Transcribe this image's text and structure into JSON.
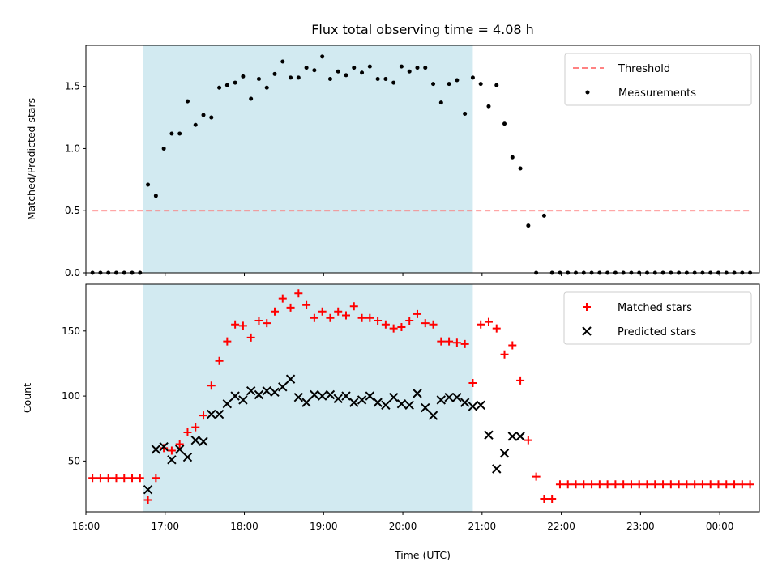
{
  "chart_data": [
    {
      "type": "scatter",
      "title": "Flux total observing time = 4.08 h",
      "xlabel": "",
      "ylabel": "Matched/Predicted stars",
      "ylim": [
        0,
        1.83
      ],
      "xlim": [
        "16:00",
        "00:30"
      ],
      "grid": false,
      "legend_position": "top-right",
      "y_ticks": [
        "0.0",
        "0.5",
        "1.0",
        "1.5"
      ],
      "shaded_span": {
        "start": "16:43",
        "end": "20:53",
        "color": "#add8e6"
      },
      "series": [
        {
          "name": "Threshold",
          "type": "line",
          "style": "dashed",
          "color": "#ff7070",
          "x": [
            "16:05",
            "00:24"
          ],
          "y": [
            0.5,
            0.5
          ]
        },
        {
          "name": "Measurements",
          "type": "scatter",
          "color": "#000000",
          "x": [
            "16:05",
            "16:11",
            "16:17",
            "16:23",
            "16:29",
            "16:35",
            "16:41",
            "16:47",
            "16:53",
            "16:59",
            "17:05",
            "17:11",
            "17:17",
            "17:23",
            "17:29",
            "17:35",
            "17:41",
            "17:47",
            "17:53",
            "17:59",
            "18:05",
            "18:11",
            "18:17",
            "18:23",
            "18:29",
            "18:35",
            "18:41",
            "18:47",
            "18:53",
            "18:59",
            "19:05",
            "19:11",
            "19:17",
            "19:23",
            "19:29",
            "19:35",
            "19:41",
            "19:47",
            "19:53",
            "19:59",
            "20:05",
            "20:11",
            "20:17",
            "20:23",
            "20:29",
            "20:35",
            "20:41",
            "20:47",
            "20:53",
            "20:59",
            "21:05",
            "21:11",
            "21:17",
            "21:23",
            "21:29",
            "21:35",
            "21:41",
            "21:47",
            "21:53",
            "21:59",
            "22:05",
            "22:11",
            "22:17",
            "22:23",
            "22:29",
            "22:35",
            "22:41",
            "22:47",
            "22:53",
            "22:59",
            "23:05",
            "23:11",
            "23:17",
            "23:23",
            "23:29",
            "23:35",
            "23:41",
            "23:47",
            "23:53",
            "23:59",
            "00:05",
            "00:11",
            "00:17",
            "00:23"
          ],
          "y": [
            0,
            0,
            0,
            0,
            0,
            0,
            0,
            0.71,
            0.62,
            1.0,
            1.12,
            1.12,
            1.38,
            1.19,
            1.27,
            1.25,
            1.49,
            1.51,
            1.53,
            1.58,
            1.4,
            1.56,
            1.49,
            1.6,
            1.7,
            1.57,
            1.57,
            1.65,
            1.63,
            1.74,
            1.56,
            1.62,
            1.59,
            1.65,
            1.61,
            1.66,
            1.56,
            1.56,
            1.53,
            1.66,
            1.62,
            1.65,
            1.65,
            1.52,
            1.37,
            1.52,
            1.55,
            1.28,
            1.57,
            1.52,
            1.34,
            1.51,
            1.2,
            0.93,
            0.84,
            0.38,
            0,
            0.46,
            0,
            0,
            0,
            0,
            0,
            0,
            0,
            0,
            0,
            0,
            0,
            0,
            0,
            0,
            0,
            0,
            0,
            0,
            0,
            0,
            0,
            0,
            0,
            0,
            0,
            0
          ]
        }
      ]
    },
    {
      "type": "scatter",
      "title": "",
      "xlabel": "Time (UTC)",
      "ylabel": "Count",
      "ylim": [
        11,
        186
      ],
      "xlim": [
        "16:00",
        "00:30"
      ],
      "grid": false,
      "legend_position": "top-right",
      "y_ticks": [
        "50",
        "100",
        "150"
      ],
      "x_ticks": [
        "16:00",
        "17:00",
        "18:00",
        "19:00",
        "20:00",
        "21:00",
        "22:00",
        "23:00",
        "00:00"
      ],
      "shaded_span": {
        "start": "16:43",
        "end": "20:53",
        "color": "#add8e6"
      },
      "series": [
        {
          "name": "Matched stars",
          "type": "scatter",
          "marker": "+",
          "color": "#ff0000",
          "x": [
            "16:05",
            "16:11",
            "16:17",
            "16:23",
            "16:29",
            "16:35",
            "16:41",
            "16:47",
            "16:53",
            "16:59",
            "17:05",
            "17:11",
            "17:17",
            "17:23",
            "17:29",
            "17:35",
            "17:41",
            "17:47",
            "17:53",
            "17:59",
            "18:05",
            "18:11",
            "18:17",
            "18:23",
            "18:29",
            "18:35",
            "18:41",
            "18:47",
            "18:53",
            "18:59",
            "19:05",
            "19:11",
            "19:17",
            "19:23",
            "19:29",
            "19:35",
            "19:41",
            "19:47",
            "19:53",
            "19:59",
            "20:05",
            "20:11",
            "20:17",
            "20:23",
            "20:29",
            "20:35",
            "20:41",
            "20:47",
            "20:53",
            "20:59",
            "21:05",
            "21:11",
            "21:17",
            "21:23",
            "21:29",
            "21:35",
            "21:41",
            "21:47",
            "21:53",
            "21:59",
            "22:05",
            "22:11",
            "22:17",
            "22:23",
            "22:29",
            "22:35",
            "22:41",
            "22:47",
            "22:53",
            "22:59",
            "23:05",
            "23:11",
            "23:17",
            "23:23",
            "23:29",
            "23:35",
            "23:41",
            "23:47",
            "23:53",
            "23:59",
            "00:05",
            "00:11",
            "00:17",
            "00:23"
          ],
          "y": [
            37,
            37,
            37,
            37,
            37,
            37,
            37,
            20,
            37,
            60,
            58,
            63,
            72,
            76,
            85,
            108,
            127,
            142,
            155,
            154,
            145,
            158,
            156,
            165,
            175,
            168,
            179,
            170,
            160,
            165,
            160,
            165,
            162,
            169,
            160,
            160,
            158,
            155,
            152,
            153,
            158,
            163,
            156,
            155,
            142,
            142,
            141,
            140,
            110,
            155,
            157,
            152,
            132,
            139,
            112,
            66,
            38,
            21,
            21,
            32,
            32,
            32,
            32,
            32,
            32,
            32,
            32,
            32,
            32,
            32,
            32,
            32,
            32,
            32,
            32,
            32,
            32,
            32,
            32,
            32,
            32,
            32,
            32,
            32
          ]
        },
        {
          "name": "Predicted stars",
          "type": "scatter",
          "marker": "x",
          "color": "#000000",
          "x": [
            "16:47",
            "16:53",
            "16:59",
            "17:05",
            "17:11",
            "17:17",
            "17:23",
            "17:29",
            "17:35",
            "17:41",
            "17:47",
            "17:53",
            "17:59",
            "18:05",
            "18:11",
            "18:17",
            "18:23",
            "18:29",
            "18:35",
            "18:41",
            "18:47",
            "18:53",
            "18:59",
            "19:05",
            "19:11",
            "19:17",
            "19:23",
            "19:29",
            "19:35",
            "19:41",
            "19:47",
            "19:53",
            "19:59",
            "20:05",
            "20:11",
            "20:17",
            "20:23",
            "20:29",
            "20:35",
            "20:41",
            "20:47",
            "20:53",
            "20:59",
            "21:05",
            "21:11",
            "21:17",
            "21:23",
            "21:29"
          ],
          "y": [
            28,
            59,
            61,
            51,
            59,
            53,
            66,
            65,
            86,
            86,
            94,
            100,
            97,
            104,
            101,
            104,
            103,
            107,
            113,
            99,
            95,
            101,
            100,
            101,
            98,
            100,
            95,
            97,
            100,
            95,
            93,
            99,
            94,
            93,
            102,
            91,
            85,
            97,
            99,
            99,
            95,
            92,
            93,
            70,
            44,
            56,
            69,
            69
          ]
        }
      ]
    }
  ]
}
